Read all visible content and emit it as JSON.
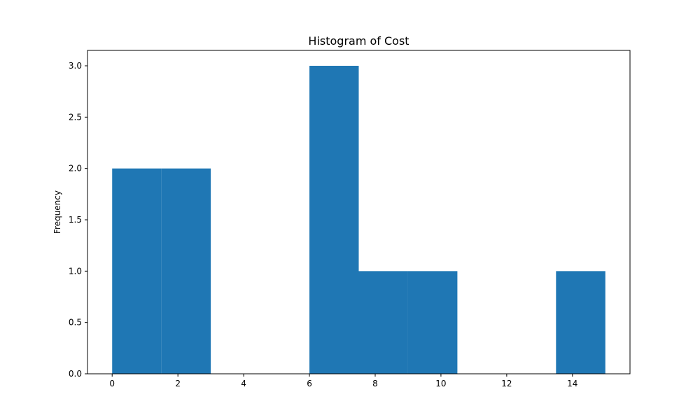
{
  "chart_data": {
    "type": "bar",
    "title": "Histogram of Cost",
    "xlabel": "",
    "ylabel": "Frequency",
    "bar_color": "#1f77b4",
    "bins": [
      {
        "start": 0.0,
        "end": 1.5,
        "count": 2
      },
      {
        "start": 1.5,
        "end": 3.0,
        "count": 2
      },
      {
        "start": 3.0,
        "end": 4.5,
        "count": 0
      },
      {
        "start": 4.5,
        "end": 6.0,
        "count": 0
      },
      {
        "start": 6.0,
        "end": 7.5,
        "count": 3
      },
      {
        "start": 7.5,
        "end": 9.0,
        "count": 1
      },
      {
        "start": 9.0,
        "end": 10.5,
        "count": 1
      },
      {
        "start": 10.5,
        "end": 12.0,
        "count": 0
      },
      {
        "start": 12.0,
        "end": 13.5,
        "count": 0
      },
      {
        "start": 13.5,
        "end": 15.0,
        "count": 1
      }
    ],
    "xlim": [
      -0.75,
      15.75
    ],
    "ylim": [
      0,
      3.15
    ],
    "x_ticks": [
      0,
      2,
      4,
      6,
      8,
      10,
      12,
      14
    ],
    "x_tick_labels": [
      "0",
      "2",
      "4",
      "6",
      "8",
      "10",
      "12",
      "14"
    ],
    "y_ticks": [
      0,
      0.5,
      1.0,
      1.5,
      2.0,
      2.5,
      3.0
    ],
    "y_tick_labels": [
      "0.0",
      "0.5",
      "1.0",
      "1.5",
      "2.0",
      "2.5",
      "3.0"
    ],
    "grid": false,
    "legend": "none"
  }
}
